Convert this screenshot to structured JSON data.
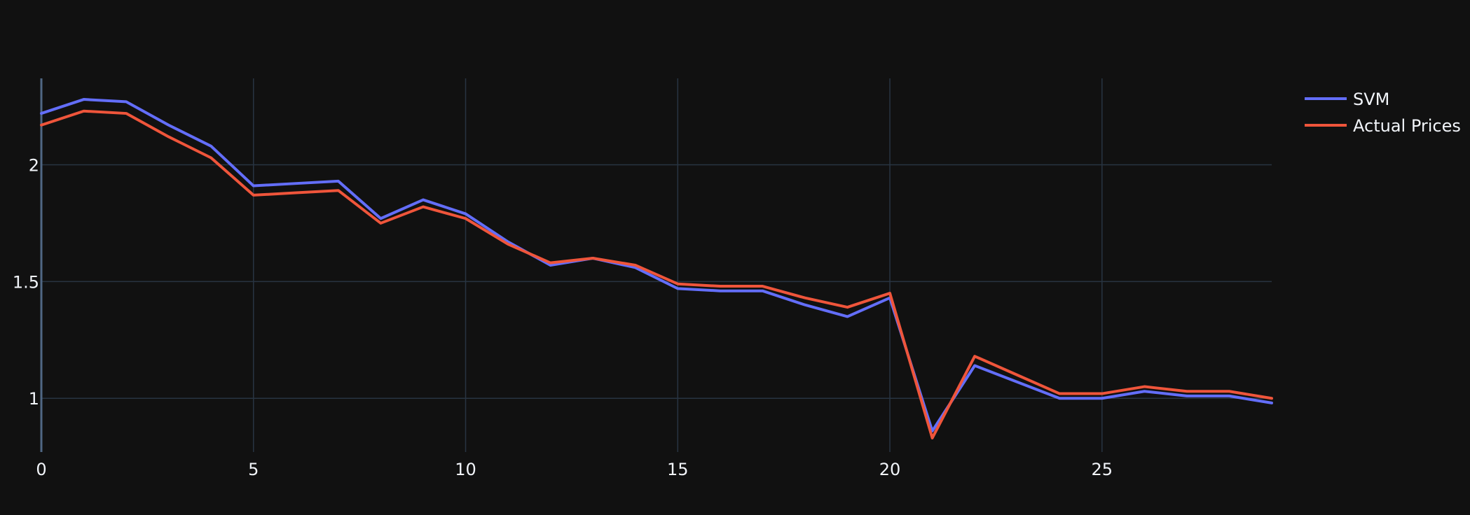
{
  "theme": {
    "background": "#111111",
    "grid": "#283442",
    "text": "#f2f5fa"
  },
  "chart_data": {
    "type": "line",
    "title": "",
    "xlabel": "",
    "ylabel": "",
    "xlim": [
      0,
      29
    ],
    "ylim": [
      0.77,
      2.37
    ],
    "x_ticks": [
      0,
      5,
      10,
      15,
      20,
      25
    ],
    "y_ticks": [
      1,
      1.5,
      2
    ],
    "y_tick_labels": [
      "1",
      "1.5",
      "2"
    ],
    "grid": true,
    "legend_position": "top-right",
    "x": [
      0,
      1,
      2,
      3,
      4,
      5,
      6,
      7,
      8,
      9,
      10,
      11,
      12,
      13,
      14,
      15,
      16,
      17,
      18,
      19,
      20,
      21,
      22,
      23,
      24,
      25,
      26,
      27,
      28,
      29
    ],
    "series": [
      {
        "name": "SVM",
        "color": "#636efa",
        "values": [
          2.22,
          2.28,
          2.27,
          2.17,
          2.08,
          1.91,
          1.92,
          1.93,
          1.77,
          1.85,
          1.79,
          1.67,
          1.57,
          1.6,
          1.56,
          1.47,
          1.46,
          1.46,
          1.4,
          1.35,
          1.43,
          0.86,
          1.14,
          1.07,
          1.0,
          1.0,
          1.03,
          1.01,
          1.01,
          0.98
        ]
      },
      {
        "name": "Actual Prices",
        "color": "#ef553b",
        "values": [
          2.17,
          2.23,
          2.22,
          2.12,
          2.03,
          1.87,
          1.88,
          1.89,
          1.75,
          1.82,
          1.77,
          1.66,
          1.58,
          1.6,
          1.57,
          1.49,
          1.48,
          1.48,
          1.43,
          1.39,
          1.45,
          0.83,
          1.18,
          1.1,
          1.02,
          1.02,
          1.05,
          1.03,
          1.03,
          1.0
        ]
      }
    ]
  }
}
